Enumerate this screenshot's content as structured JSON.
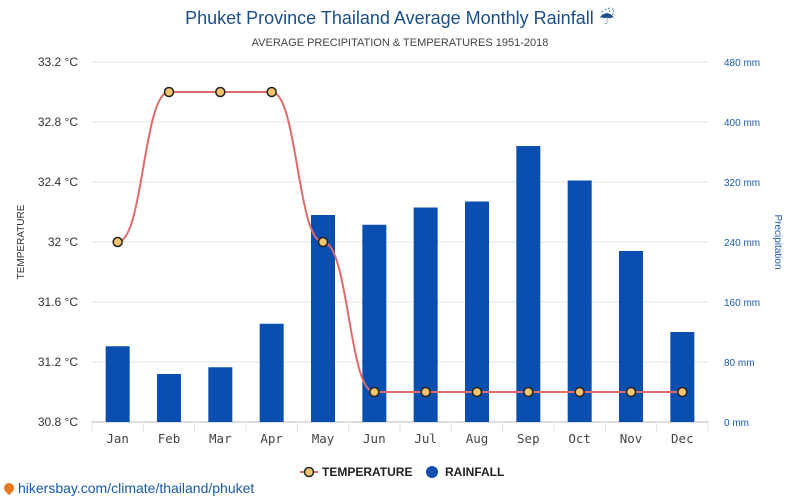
{
  "chart_data": {
    "type": "bar+line",
    "title": "Phuket Province Thailand Average Monthly Rainfall",
    "title_icon": "umbrella-rain-icon",
    "title_icon_glyph": "☔",
    "subtitle": "AVERAGE PRECIPITATION & TEMPERATURES 1951-2018",
    "categories": [
      "Jan",
      "Feb",
      "Mar",
      "Apr",
      "May",
      "Jun",
      "Jul",
      "Aug",
      "Sep",
      "Oct",
      "Nov",
      "Dec"
    ],
    "series": [
      {
        "name": "TEMPERATURE",
        "kind": "line",
        "axis": "left",
        "unit": "°C",
        "color": "#e06b6b",
        "marker_fill": "#f5c46e",
        "values": [
          32.0,
          33.0,
          33.0,
          33.0,
          32.0,
          31.0,
          31.0,
          31.0,
          31.0,
          31.0,
          31.0,
          31.0
        ]
      },
      {
        "name": "RAINFALL",
        "kind": "bar",
        "axis": "right",
        "unit": "mm",
        "color": "#0a4fb0",
        "values": [
          101,
          64,
          73,
          131,
          276,
          263,
          286,
          294,
          368,
          322,
          228,
          120
        ]
      }
    ],
    "left_axis": {
      "label": "TEMPERATURE",
      "ylim": [
        30.8,
        33.2
      ],
      "ticks": [
        "30.8 °C",
        "31.2 °C",
        "31.6 °C",
        "32 °C",
        "32.4 °C",
        "32.8 °C",
        "33.2 °C"
      ],
      "tick_values": [
        30.8,
        31.2,
        31.6,
        32.0,
        32.4,
        32.8,
        33.2
      ]
    },
    "right_axis": {
      "label": "Precipitation",
      "ylim": [
        0,
        480
      ],
      "ticks": [
        "0 mm",
        "80 mm",
        "160 mm",
        "240 mm",
        "320 mm",
        "400 mm",
        "480 mm"
      ],
      "tick_values": [
        0,
        80,
        160,
        240,
        320,
        400,
        480
      ]
    },
    "legend": {
      "position": "bottom-center",
      "items": [
        "TEMPERATURE",
        "RAINFALL"
      ]
    },
    "grid": true
  },
  "source_link": "hikersbay.com/climate/thailand/phuket",
  "source_icon": "location-pin-icon"
}
